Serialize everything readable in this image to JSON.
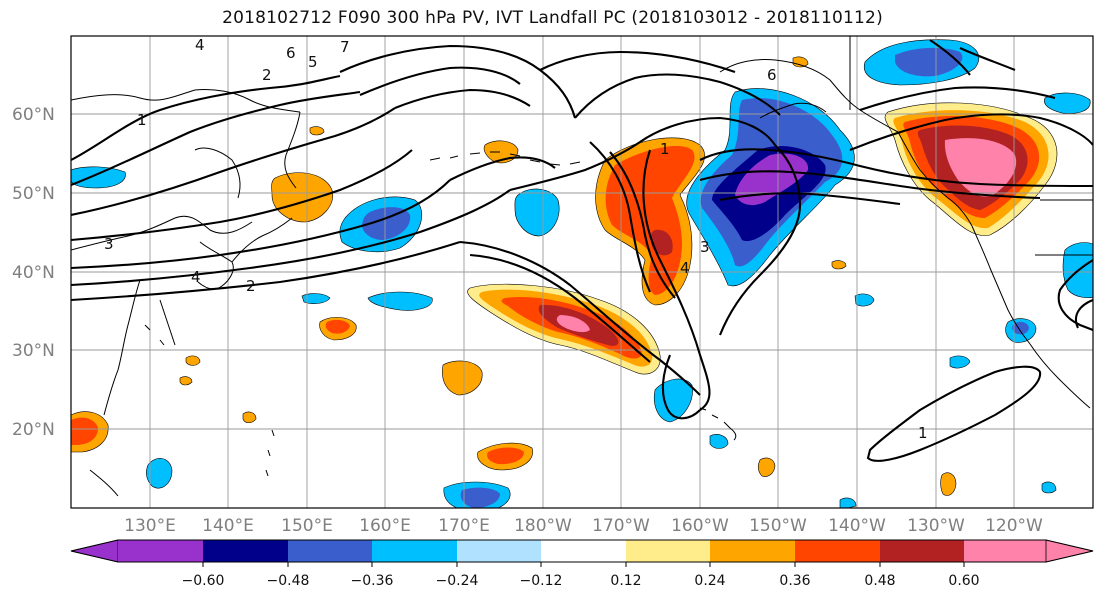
{
  "title": "2018102712 F090 300 hPa PV, IVT Landfall PC (2018103012 - 2018110112)",
  "lat_labels": [
    "60°N",
    "50°N",
    "40°N",
    "30°N",
    "20°N"
  ],
  "lon_labels": [
    "130°E",
    "140°E",
    "150°E",
    "160°E",
    "170°E",
    "180°W",
    "170°W",
    "160°W",
    "150°W",
    "140°W",
    "130°W",
    "120°W"
  ],
  "colorbar": {
    "ticks": [
      "−0.60",
      "−0.48",
      "−0.36",
      "−0.24",
      "−0.12",
      "0.12",
      "0.24",
      "0.36",
      "0.48",
      "0.60"
    ],
    "colors": [
      "#9932cc",
      "#00008b",
      "#3a5fcd",
      "#00bfff",
      "#b0e2ff",
      "#ffffff",
      "#ffec8b",
      "#ffa500",
      "#ff4500",
      "#b22222",
      "#ff82ab"
    ]
  },
  "contour_labels": [
    "1",
    "2",
    "3",
    "4",
    "5",
    "6",
    "7",
    "2",
    "4",
    "3",
    "4",
    "6",
    "1",
    "1"
  ],
  "shading_colors": {
    "purple": "#9932cc",
    "navy": "#00008b",
    "royal": "#3a5fcd",
    "deepsky": "#00bfff",
    "lightsky": "#b0e2ff",
    "lightyellow": "#ffec8b",
    "orange": "#ffa500",
    "orangered": "#ff4500",
    "firebrick": "#b22222",
    "pink": "#ff82ab"
  }
}
